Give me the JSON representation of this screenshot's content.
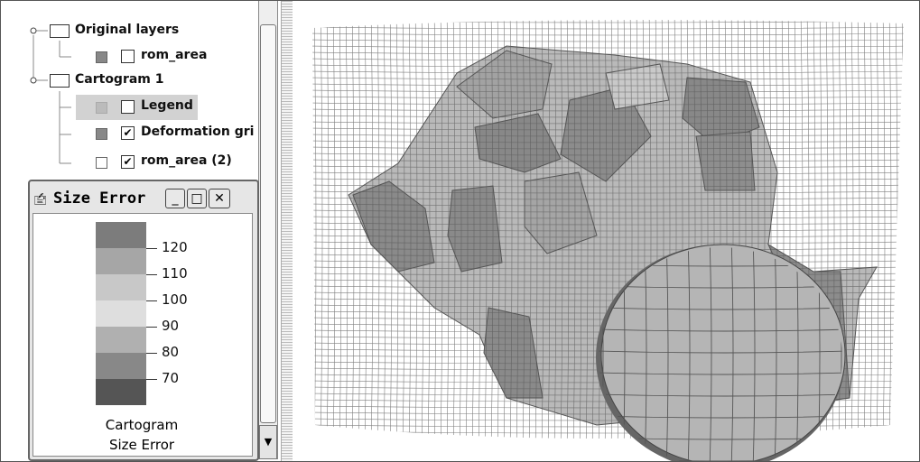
{
  "layers": [
    {
      "label": "Original layers"
    },
    {
      "label": "rom_area"
    },
    {
      "label": "Cartogram 1"
    },
    {
      "label": "Legend"
    },
    {
      "label": "Deformation gri"
    },
    {
      "label": "rom_area (2)"
    }
  ],
  "legend_window": {
    "title": "Size Error",
    "ticks": [
      "120",
      "110",
      "100",
      "90",
      "80",
      "70"
    ],
    "caption": [
      "Cartogram",
      "Size Error"
    ]
  }
}
